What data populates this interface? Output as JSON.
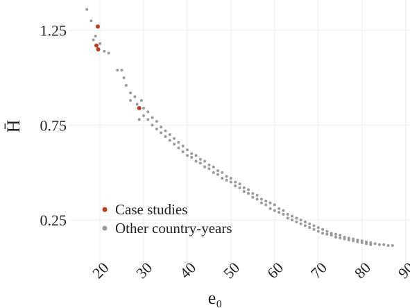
{
  "chart_data": {
    "type": "scatter",
    "x_label": "e₀",
    "y_label": "H̄",
    "xlim": [
      13,
      91
    ],
    "ylim": [
      0.02,
      1.41
    ],
    "xticks": [
      20,
      30,
      40,
      50,
      60,
      70,
      80,
      90
    ],
    "yticks": [
      0.25,
      0.75,
      1.25
    ],
    "grid": true,
    "legend": "bottom-left",
    "series": [
      {
        "name": "Other country-years",
        "color": "#9a9a9a",
        "x": [
          17,
          18,
          18.5,
          19,
          20,
          21,
          22,
          24,
          25,
          25.5,
          26,
          27,
          27,
          28,
          28.5,
          29,
          29.5,
          30,
          30,
          31,
          31,
          32,
          32,
          33,
          33,
          34,
          34,
          35,
          35,
          36,
          36,
          37,
          37,
          38,
          38,
          39,
          39,
          40,
          40,
          41,
          41,
          42,
          42,
          43,
          43,
          44,
          44,
          45,
          45,
          46,
          46,
          47,
          47,
          48,
          48,
          49,
          49,
          50,
          50,
          51,
          51,
          52,
          52,
          53,
          53,
          54,
          54,
          55,
          55,
          56,
          56,
          57,
          57,
          58,
          58,
          59,
          59,
          60,
          60,
          61,
          61,
          62,
          62,
          63,
          63,
          64,
          64,
          65,
          65,
          66,
          66,
          67,
          67,
          68,
          68,
          69,
          69,
          70,
          70,
          71,
          71,
          72,
          72,
          73,
          73,
          74,
          74,
          75,
          75,
          76,
          76,
          77,
          77,
          78,
          78,
          79,
          79,
          80,
          80,
          81,
          81,
          82,
          82,
          83,
          84,
          85,
          86,
          87
        ],
        "values": [
          1.36,
          1.3,
          1.2,
          1.22,
          1.18,
          1.14,
          1.13,
          1.04,
          1.04,
          1.0,
          0.96,
          0.92,
          0.88,
          0.9,
          0.86,
          0.78,
          0.88,
          0.84,
          0.8,
          0.82,
          0.78,
          0.79,
          0.75,
          0.77,
          0.73,
          0.74,
          0.71,
          0.72,
          0.69,
          0.7,
          0.67,
          0.68,
          0.65,
          0.66,
          0.63,
          0.64,
          0.61,
          0.62,
          0.59,
          0.6,
          0.58,
          0.59,
          0.56,
          0.57,
          0.55,
          0.56,
          0.53,
          0.54,
          0.52,
          0.53,
          0.5,
          0.51,
          0.49,
          0.5,
          0.47,
          0.48,
          0.46,
          0.47,
          0.45,
          0.45,
          0.43,
          0.44,
          0.42,
          0.42,
          0.4,
          0.41,
          0.39,
          0.39,
          0.37,
          0.38,
          0.36,
          0.36,
          0.34,
          0.35,
          0.33,
          0.34,
          0.31,
          0.33,
          0.3,
          0.31,
          0.29,
          0.3,
          0.28,
          0.28,
          0.26,
          0.27,
          0.25,
          0.26,
          0.24,
          0.25,
          0.23,
          0.24,
          0.22,
          0.23,
          0.21,
          0.22,
          0.2,
          0.21,
          0.19,
          0.2,
          0.18,
          0.19,
          0.175,
          0.18,
          0.17,
          0.175,
          0.16,
          0.17,
          0.155,
          0.16,
          0.15,
          0.155,
          0.145,
          0.15,
          0.14,
          0.145,
          0.135,
          0.14,
          0.13,
          0.135,
          0.125,
          0.13,
          0.12,
          0.125,
          0.12,
          0.12,
          0.115,
          0.115
        ]
      },
      {
        "name": "Case studies",
        "color": "#c0391b",
        "x": [
          19.5,
          19.2,
          19.6,
          29
        ],
        "values": [
          1.27,
          1.17,
          1.15,
          0.84
        ]
      }
    ]
  }
}
